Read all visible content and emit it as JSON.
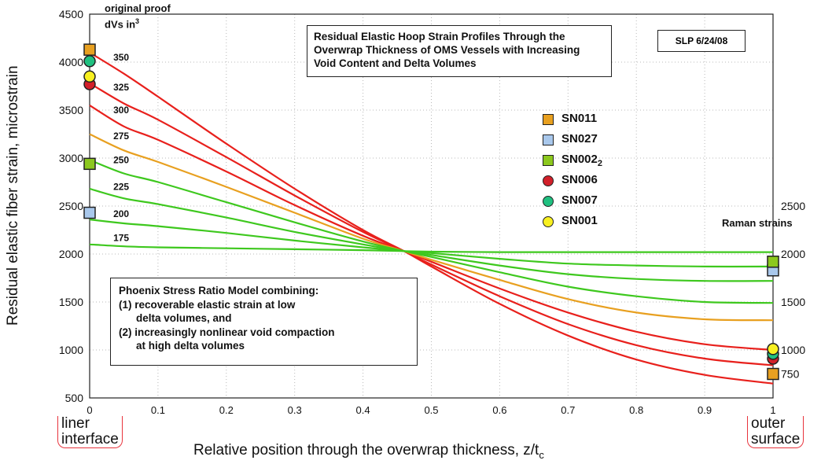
{
  "chart_data": {
    "type": "line",
    "title": "Residual Elastic Hoop Strain Profiles Through the Overwrap Thickness of OMS Vessels with Increasing Void Content and Delta Volumes",
    "date_label": "SLP 6/24/08",
    "xlabel_main": "Relative position through the overwrap thickness,  z/t",
    "xlabel_sub": "c",
    "ylabel": "Residual elastic fiber strain, microstrain",
    "xlim": [
      0,
      1
    ],
    "ylim": [
      500,
      4500
    ],
    "x_ticks": [
      "0",
      "0.1",
      "0.2",
      "0.3",
      "0.4",
      "0.5",
      "0.6",
      "0.7",
      "0.8",
      "0.9",
      "1"
    ],
    "y_ticks": [
      "500",
      "1000",
      "1500",
      "2000",
      "2500",
      "3000",
      "3500",
      "4000",
      "4500"
    ],
    "right_axis": {
      "title": "Raman strains",
      "ticks": [
        "750",
        "1000",
        "1500",
        "2000",
        "2500"
      ]
    },
    "grid": true,
    "curve_group_label_line1": "original proof",
    "curve_group_label_line2": "dVs in",
    "curve_group_label_sup": "3",
    "series": [
      {
        "name": "350",
        "color": "#e8201c",
        "x": [
          0,
          0.05,
          0.1,
          0.2,
          0.3,
          0.4,
          0.46,
          0.5,
          0.6,
          0.7,
          0.8,
          0.9,
          1
        ],
        "y": [
          4100,
          3880,
          3640,
          3150,
          2680,
          2250,
          2030,
          1870,
          1480,
          1150,
          900,
          740,
          650
        ]
      },
      {
        "name": "325",
        "color": "#e8201c",
        "x": [
          0,
          0.05,
          0.1,
          0.2,
          0.3,
          0.4,
          0.46,
          0.5,
          0.6,
          0.7,
          0.8,
          0.9,
          1
        ],
        "y": [
          3780,
          3570,
          3400,
          3010,
          2610,
          2230,
          2030,
          1890,
          1560,
          1270,
          1050,
          910,
          840
        ]
      },
      {
        "name": "300",
        "color": "#e8201c",
        "x": [
          0,
          0.05,
          0.1,
          0.2,
          0.3,
          0.4,
          0.46,
          0.5,
          0.6,
          0.7,
          0.8,
          0.9,
          1
        ],
        "y": [
          3550,
          3330,
          3190,
          2860,
          2510,
          2190,
          2030,
          1920,
          1640,
          1390,
          1190,
          1060,
          1000
        ]
      },
      {
        "name": "275",
        "color": "#e8a020",
        "x": [
          0,
          0.05,
          0.1,
          0.2,
          0.3,
          0.4,
          0.46,
          0.5,
          0.6,
          0.7,
          0.8,
          0.9,
          1
        ],
        "y": [
          3250,
          3080,
          2960,
          2700,
          2430,
          2160,
          2030,
          1940,
          1730,
          1530,
          1390,
          1320,
          1310
        ]
      },
      {
        "name": "250",
        "color": "#3ec81e",
        "x": [
          0,
          0.05,
          0.1,
          0.2,
          0.3,
          0.4,
          0.46,
          0.5,
          0.6,
          0.7,
          0.8,
          0.9,
          1
        ],
        "y": [
          2980,
          2840,
          2750,
          2540,
          2330,
          2130,
          2030,
          1970,
          1810,
          1660,
          1560,
          1500,
          1490
        ]
      },
      {
        "name": "225",
        "color": "#3ec81e",
        "x": [
          0,
          0.05,
          0.1,
          0.2,
          0.3,
          0.4,
          0.46,
          0.5,
          0.6,
          0.7,
          0.8,
          0.9,
          1
        ],
        "y": [
          2680,
          2580,
          2520,
          2380,
          2230,
          2100,
          2030,
          1990,
          1880,
          1790,
          1740,
          1720,
          1720
        ]
      },
      {
        "name": "200",
        "color": "#3ec81e",
        "x": [
          0,
          0.05,
          0.1,
          0.2,
          0.3,
          0.4,
          0.46,
          0.5,
          0.6,
          0.7,
          0.8,
          0.9,
          1
        ],
        "y": [
          2360,
          2320,
          2290,
          2220,
          2140,
          2070,
          2030,
          2010,
          1950,
          1900,
          1880,
          1870,
          1870
        ]
      },
      {
        "name": "175",
        "color": "#3ec81e",
        "x": [
          0,
          0.05,
          0.1,
          0.2,
          0.3,
          0.4,
          0.46,
          0.5,
          0.6,
          0.7,
          0.8,
          0.9,
          1
        ],
        "y": [
          2100,
          2080,
          2070,
          2060,
          2050,
          2040,
          2030,
          2025,
          2020,
          2020,
          2020,
          2020,
          2020
        ]
      }
    ],
    "markers": [
      {
        "name": "SN011",
        "shape": "square",
        "color": "#e8a020",
        "points": [
          [
            0,
            4130
          ],
          [
            1,
            750
          ]
        ]
      },
      {
        "name": "SN027",
        "shape": "square",
        "color": "#a9c8ec",
        "points": [
          [
            0,
            2430
          ],
          [
            1,
            1830
          ]
        ]
      },
      {
        "name": "SN002",
        "name_sub": "2",
        "shape": "square",
        "color": "#8cc81e",
        "points": [
          [
            0,
            2940
          ],
          [
            1,
            1920
          ]
        ]
      },
      {
        "name": "SN006",
        "shape": "circle",
        "color": "#d2202a",
        "points": [
          [
            0,
            3770
          ],
          [
            1,
            910
          ]
        ]
      },
      {
        "name": "SN007",
        "shape": "circle",
        "color": "#20c080",
        "points": [
          [
            0,
            4010
          ],
          [
            1,
            960
          ]
        ]
      },
      {
        "name": "SN001",
        "shape": "circle",
        "color": "#f8f020",
        "points": [
          [
            0,
            3850
          ],
          [
            1,
            1010
          ]
        ]
      }
    ]
  },
  "model_box": {
    "line1": "Phoenix Stress Ratio Model combining:",
    "line2": "(1) recoverable elastic strain at low",
    "line3": "delta volumes, and",
    "line4": "(2) increasingly nonlinear void compaction",
    "line5": "at high delta volumes"
  },
  "end_labels": {
    "left_line1": "liner",
    "left_line2": "interface",
    "right_line1": "outer",
    "right_line2": "surface"
  }
}
